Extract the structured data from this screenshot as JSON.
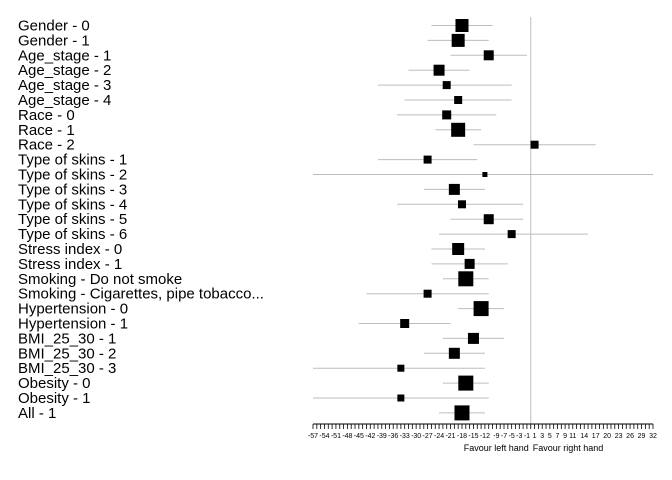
{
  "chart_data": {
    "type": "forest",
    "xlim": [
      -57,
      32
    ],
    "reference_line": 0,
    "tick_step": 1,
    "tick_labels": [
      "-57",
      "-54",
      "-51",
      "-48",
      "-45",
      "-42",
      "-39",
      "-36",
      "-33",
      "-30",
      "-27",
      "-24",
      "-21",
      "-18",
      "-15",
      "-12",
      "-9",
      "-7",
      "-5",
      "-3",
      "-1",
      "1",
      "3",
      "5",
      "7",
      "9",
      "11",
      "14",
      "17",
      "20",
      "23",
      "26",
      "29",
      "32"
    ],
    "xlabel_left": "Favour left hand",
    "xlabel_right": "Favour right hand",
    "rows": [
      {
        "label": "Gender - 0",
        "estimate": -18,
        "lower": -26,
        "upper": -10,
        "weight": 13
      },
      {
        "label": "Gender - 1",
        "estimate": -19,
        "lower": -27,
        "upper": -11,
        "weight": 13
      },
      {
        "label": "Age_stage - 1",
        "estimate": -11,
        "lower": -21,
        "upper": -1,
        "weight": 10
      },
      {
        "label": "Age_stage - 2",
        "estimate": -24,
        "lower": -32,
        "upper": -16,
        "weight": 11
      },
      {
        "label": "Age_stage - 3",
        "estimate": -22,
        "lower": -40,
        "upper": -5,
        "weight": 8
      },
      {
        "label": "Age_stage - 4",
        "estimate": -19,
        "lower": -33,
        "upper": -5,
        "weight": 8
      },
      {
        "label": "Race - 0",
        "estimate": -22,
        "lower": -35,
        "upper": -9,
        "weight": 9
      },
      {
        "label": "Race - 1",
        "estimate": -19,
        "lower": -25,
        "upper": -13,
        "weight": 14
      },
      {
        "label": "Race - 2",
        "estimate": 1,
        "lower": -15,
        "upper": 17,
        "weight": 8
      },
      {
        "label": "Type of skins - 1",
        "estimate": -27,
        "lower": -40,
        "upper": -14,
        "weight": 8
      },
      {
        "label": "Type of skins - 2",
        "estimate": -12,
        "lower": -57,
        "upper": 32,
        "weight": 5
      },
      {
        "label": "Type of skins - 3",
        "estimate": -20,
        "lower": -28,
        "upper": -12,
        "weight": 11
      },
      {
        "label": "Type of skins - 4",
        "estimate": -18,
        "lower": -35,
        "upper": -2,
        "weight": 8
      },
      {
        "label": "Type of skins - 5",
        "estimate": -11,
        "lower": -21,
        "upper": -2,
        "weight": 10
      },
      {
        "label": "Type of skins - 6",
        "estimate": -5,
        "lower": -24,
        "upper": 15,
        "weight": 8
      },
      {
        "label": "Stress index - 0",
        "estimate": -19,
        "lower": -26,
        "upper": -12,
        "weight": 12
      },
      {
        "label": "Stress index - 1",
        "estimate": -16,
        "lower": -26,
        "upper": -6,
        "weight": 10
      },
      {
        "label": "Smoking - Do not smoke",
        "estimate": -17,
        "lower": -23,
        "upper": -11,
        "weight": 15
      },
      {
        "label": "Smoking - Cigarettes, pipe tobacco...",
        "estimate": -27,
        "lower": -43,
        "upper": -11,
        "weight": 8
      },
      {
        "label": "Hypertension - 0",
        "estimate": -13,
        "lower": -19,
        "upper": -7,
        "weight": 15
      },
      {
        "label": "Hypertension - 1",
        "estimate": -33,
        "lower": -45,
        "upper": -21,
        "weight": 9
      },
      {
        "label": "BMI_25_30 - 1",
        "estimate": -15,
        "lower": -23,
        "upper": -7,
        "weight": 11
      },
      {
        "label": "BMI_25_30 - 2",
        "estimate": -20,
        "lower": -28,
        "upper": -12,
        "weight": 11
      },
      {
        "label": "BMI_25_30 - 3",
        "estimate": -34,
        "lower": -57,
        "upper": -12,
        "weight": 7
      },
      {
        "label": "Obesity - 0",
        "estimate": -17,
        "lower": -23,
        "upper": -11,
        "weight": 15
      },
      {
        "label": "Obesity - 1",
        "estimate": -34,
        "lower": -57,
        "upper": -11,
        "weight": 7
      },
      {
        "label": "All - 1",
        "estimate": -18,
        "lower": -24,
        "upper": -12,
        "weight": 15
      }
    ],
    "colors": {
      "marker": "#000000",
      "ci_line": "#bdbdbd",
      "reference": "#bdbdbd",
      "axis": "#000000"
    }
  }
}
